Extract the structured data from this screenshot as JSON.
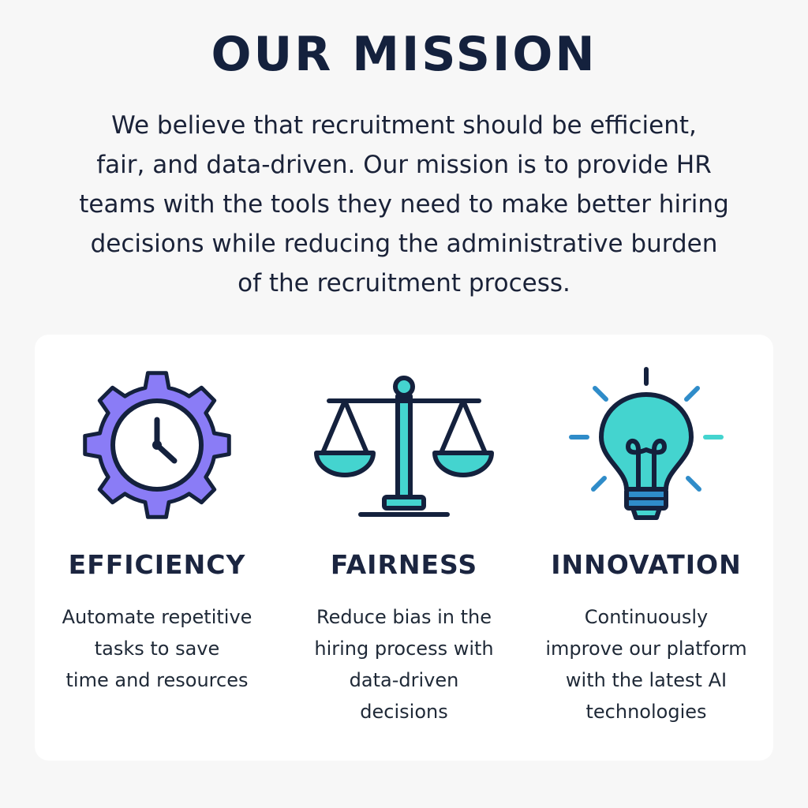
{
  "header": {
    "title": "OUR MISSION",
    "mission_lines": [
      "We believe that recruitment should be efficient,",
      "fair, and data-driven. Our mission is to provide HR",
      "teams with the tools they need to make better hiring",
      "decisions while reducing the administrative burden",
      "of the recruitment process."
    ]
  },
  "values": [
    {
      "icon": "gear-clock-icon",
      "title": "EFFICIENCY",
      "desc_lines": [
        "Automate repetitive",
        "tasks to save",
        "time and resources"
      ]
    },
    {
      "icon": "scales-icon",
      "title": "FAIRNESS",
      "desc_lines": [
        "Reduce bias in the",
        "hiring process with",
        "data-driven",
        "decisions"
      ]
    },
    {
      "icon": "lightbulb-icon",
      "title": "INNOVATION",
      "desc_lines": [
        "Continuously",
        "improve our platform",
        "with the latest AI",
        "technologies"
      ]
    }
  ],
  "colors": {
    "navy": "#14213d",
    "purple": "#8a7cf6",
    "teal": "#44d4cf",
    "blue": "#2f8cc9"
  }
}
